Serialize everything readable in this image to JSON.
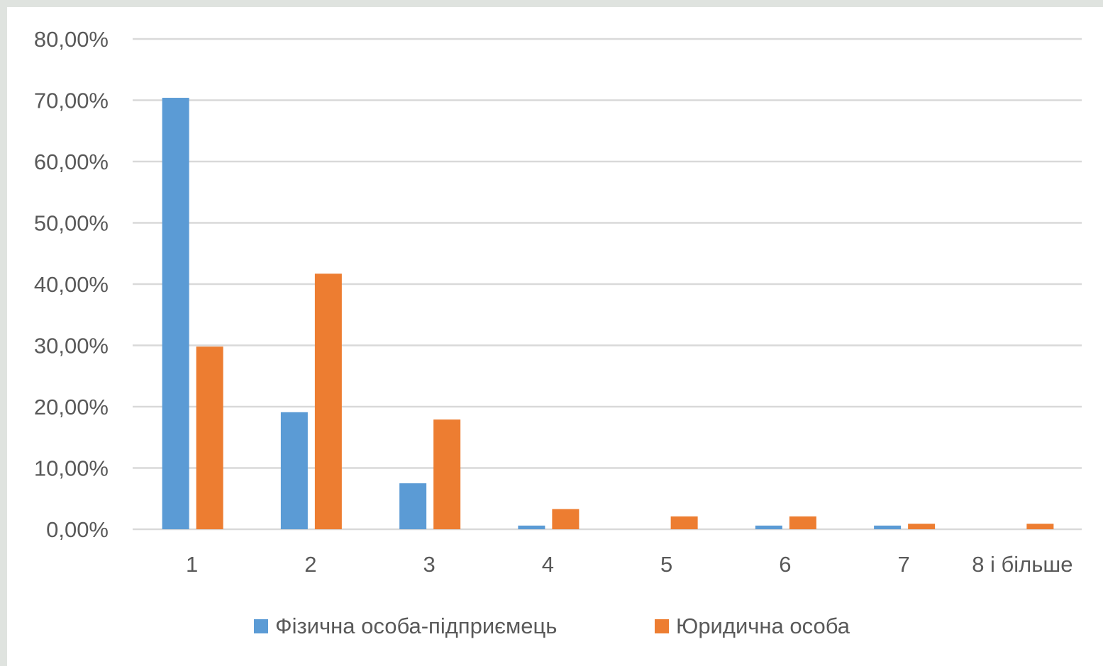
{
  "chart_data": {
    "type": "bar",
    "categories": [
      "1",
      "2",
      "3",
      "4",
      "5",
      "6",
      "7",
      "8 і більше"
    ],
    "series": [
      {
        "name": "Фізична особа-підприємець",
        "color": "#5b9bd5",
        "values": [
          70.4,
          19.1,
          7.5,
          0.6,
          0.0,
          0.6,
          0.6,
          0.0
        ]
      },
      {
        "name": "Юридична особа",
        "color": "#ed7d31",
        "values": [
          29.8,
          41.7,
          17.9,
          3.3,
          2.1,
          2.1,
          0.9,
          0.9
        ]
      }
    ],
    "ylim": [
      0,
      80
    ],
    "yticks": [
      "0,00%",
      "10,00%",
      "20,00%",
      "30,00%",
      "40,00%",
      "50,00%",
      "60,00%",
      "70,00%",
      "80,00%"
    ],
    "grid": true,
    "gridColor": "#d9d9d9",
    "legend": "bottom"
  }
}
